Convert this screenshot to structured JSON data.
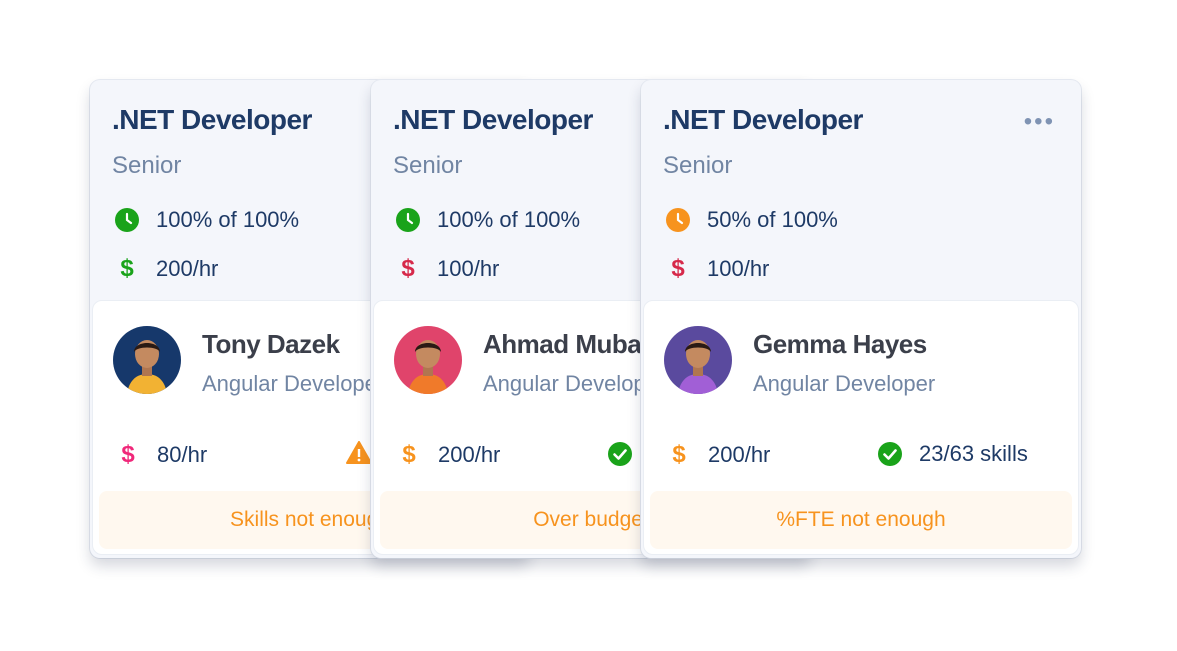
{
  "colors": {
    "title": "#1e3a66",
    "muted": "#7185a3",
    "green": "#1aa31a",
    "orange": "#f7931e",
    "red": "#d6294a",
    "pink": "#f0287a"
  },
  "cards": [
    {
      "title": ".NET Developer",
      "level": "Senior",
      "fte": "100% of 100%",
      "fte_icon": "clock-icon",
      "fte_color": "#1aa31a",
      "rate": "200/hr",
      "rate_color": "#1aa31a",
      "candidate": {
        "name": "Tony Dazek",
        "role": "Angular Developer",
        "rate": "80/hr",
        "rate_color": "#f0287a",
        "skills_icon": "warning-icon",
        "skills": "",
        "status": "Skills not enough",
        "avatar_bg": "#16386b",
        "avatar_shirt": "#f2b233"
      }
    },
    {
      "title": ".NET Developer",
      "level": "Senior",
      "fte": "100% of 100%",
      "fte_icon": "clock-icon",
      "fte_color": "#1aa31a",
      "rate": "100/hr",
      "rate_color": "#d6294a",
      "candidate": {
        "name": "Ahmad Muba",
        "role": "Angular Developer",
        "rate": "200/hr",
        "rate_color": "#f7931e",
        "skills_icon": "check-circle-icon",
        "skills": "",
        "status": "Over budget",
        "avatar_bg": "#e0446b",
        "avatar_shirt": "#f07a2a"
      }
    },
    {
      "title": ".NET Developer",
      "level": "Senior",
      "fte": "50% of 100%",
      "fte_icon": "clock-icon",
      "fte_color": "#f7931e",
      "rate": "100/hr",
      "rate_color": "#d6294a",
      "menu": "•••",
      "candidate": {
        "name": "Gemma Hayes",
        "role": "Angular Developer",
        "rate": "200/hr",
        "rate_color": "#f7931e",
        "skills_icon": "check-circle-icon",
        "skills": "23/63 skills",
        "status": "%FTE not enough",
        "avatar_bg": "#5a4a9e",
        "avatar_shirt": "#a15fd6"
      }
    }
  ]
}
